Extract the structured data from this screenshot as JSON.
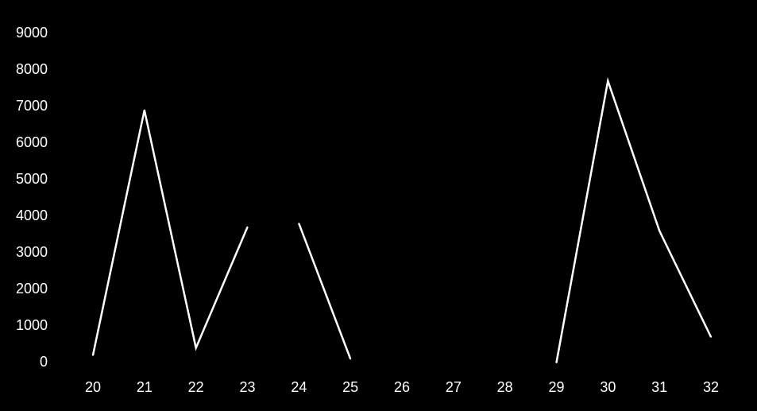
{
  "colors": {
    "background": "#000000",
    "line": "#ffffff",
    "text": "#ffffff"
  },
  "chart_data": {
    "type": "line",
    "title": "",
    "xlabel": "",
    "ylabel": "",
    "grid": false,
    "legend": "none",
    "ylim": [
      0,
      9000
    ],
    "y_ticks": [
      "0",
      "1000",
      "2000",
      "3000",
      "4000",
      "5000",
      "6000",
      "7000",
      "8000",
      "9000"
    ],
    "x_ticks": [
      "20",
      "21",
      "22",
      "23",
      "24",
      "25",
      "26",
      "27",
      "28",
      "29",
      "30",
      "31",
      "32"
    ],
    "series": [
      {
        "segments": [
          [
            [
              20,
              200
            ],
            [
              21,
              6900
            ],
            [
              22,
              400
            ],
            [
              23,
              3700
            ]
          ],
          [
            [
              24,
              3800
            ],
            [
              25,
              100
            ]
          ],
          [
            [
              29,
              0
            ],
            [
              30,
              7700
            ],
            [
              31,
              3600
            ],
            [
              32,
              700
            ]
          ]
        ]
      }
    ]
  }
}
